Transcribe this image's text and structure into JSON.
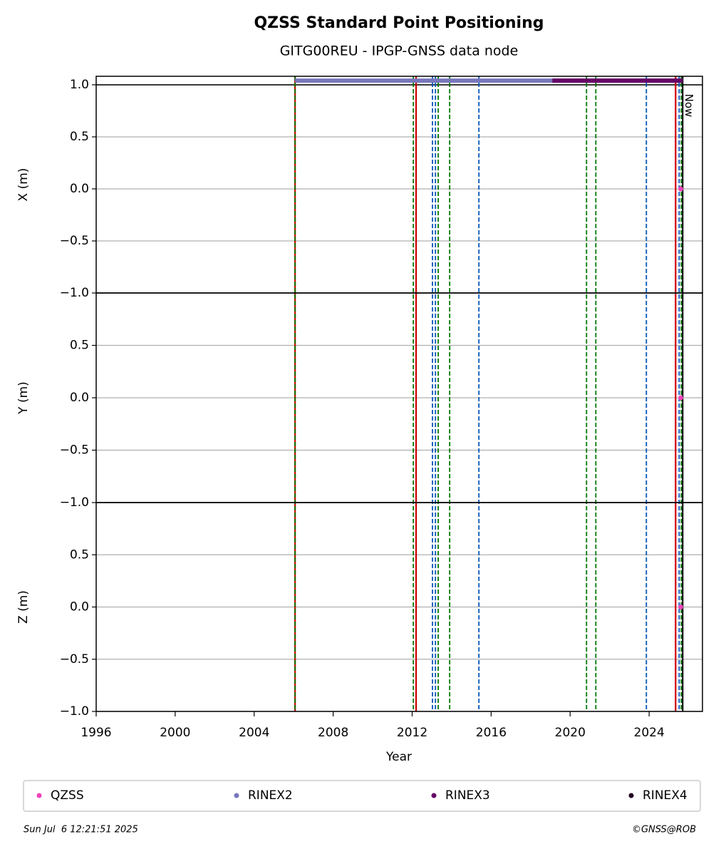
{
  "chart_data": {
    "type": "scatter",
    "title": "QZSS Standard Point Positioning",
    "subtitle": "GITG00REU - IPGP-GNSS data node",
    "xlabel": "Year",
    "xlim": [
      1996,
      2026.7
    ],
    "xticks": [
      1996,
      2000,
      2004,
      2008,
      2012,
      2016,
      2020,
      2024
    ],
    "grid": true,
    "panels": [
      {
        "ylabel": "X (m)",
        "ylim": [
          -1,
          1.082
        ],
        "hline": 1,
        "yticks": [
          {
            "value": -1,
            "label": "−1.0"
          },
          {
            "value": -0.5,
            "label": "−0.5"
          },
          {
            "value": 0,
            "label": "0.0"
          },
          0.5,
          {
            "value": 1,
            "label": "1.0"
          }
        ]
      },
      {
        "ylabel": "Y (m)",
        "ylim": [
          -1,
          1
        ],
        "yticks": [
          {
            "value": -1,
            "label": "−1.0"
          },
          {
            "value": -0.5,
            "label": "−0.5"
          },
          {
            "value": 0,
            "label": "0.0"
          },
          0.5
        ]
      },
      {
        "ylabel": "Z (m)",
        "ylim": [
          -1,
          1
        ],
        "yticks": [
          {
            "value": -1,
            "label": "−1.0"
          },
          {
            "value": -0.5,
            "label": "−0.5"
          },
          {
            "value": 0,
            "label": "0.0"
          },
          0.5
        ]
      }
    ],
    "series": [
      {
        "name": "QZSS",
        "color": "#ee44bb",
        "x": [
          2025.6
        ],
        "values": [
          [
            0
          ],
          [
            0
          ],
          [
            0
          ]
        ]
      },
      {
        "name": "RINEX2",
        "color": "#7777bb",
        "x": [
          2006.07,
          2025.7
        ],
        "level": 1.04
      },
      {
        "name": "RINEX3",
        "color": "#660066",
        "x": [
          2019.1,
          2025.7
        ],
        "level": 1.04
      },
      {
        "name": "RINEX4",
        "color": "#220022"
      }
    ],
    "events": [
      {
        "x": 2006.07,
        "color": "#cc0000",
        "style": "solid"
      },
      {
        "x": 2006.07,
        "color": "#007700",
        "style": "dashed"
      },
      {
        "x": 2012.06,
        "color": "#007700",
        "style": "dashed"
      },
      {
        "x": 2012.2,
        "color": "#cc0000",
        "style": "solid"
      },
      {
        "x": 2013.03,
        "color": "#0055bb",
        "style": "dashed"
      },
      {
        "x": 2013.18,
        "color": "#0055bb",
        "style": "dashed"
      },
      {
        "x": 2013.32,
        "color": "#007700",
        "style": "dashed"
      },
      {
        "x": 2013.9,
        "color": "#007700",
        "style": "dashed"
      },
      {
        "x": 2015.38,
        "color": "#0055bb",
        "style": "dashed"
      },
      {
        "x": 2020.83,
        "color": "#007700",
        "style": "dashed"
      },
      {
        "x": 2021.3,
        "color": "#007700",
        "style": "dashed"
      },
      {
        "x": 2023.86,
        "color": "#0055bb",
        "style": "dashed"
      },
      {
        "x": 2025.34,
        "color": "#cc0000",
        "style": "solid"
      },
      {
        "x": 2025.52,
        "color": "#0055bb",
        "style": "dashed"
      },
      {
        "x": 2025.63,
        "color": "#007700",
        "style": "dashed"
      }
    ],
    "now": {
      "x": 2025.7,
      "label": "Now"
    },
    "timestamp": "Sun Jul  6 12:21:51 2025",
    "credit": "©GNSS@ROB"
  }
}
